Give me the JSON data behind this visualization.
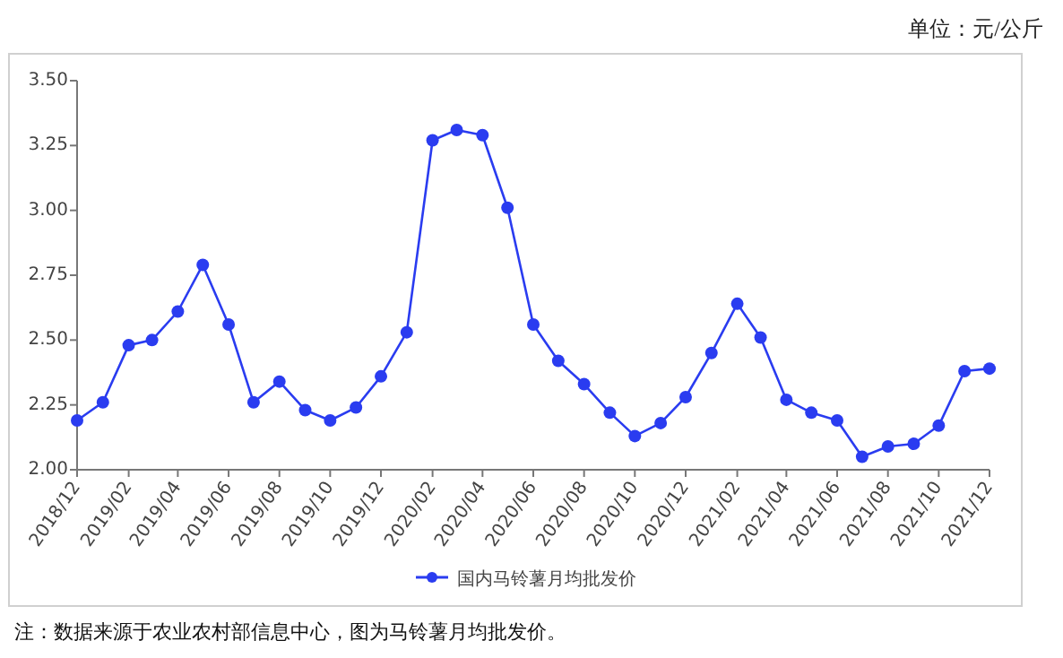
{
  "chart_data": {
    "type": "line",
    "subtitle": "单位：元/公斤",
    "annotations": [
      "注：数据来源于农业农村部信息中心，图为马铃薯月均批发价。"
    ],
    "x": [
      "2018-12",
      "2019-01",
      "2019-02",
      "2019-03",
      "2019-04",
      "2019-05",
      "2019-06",
      "2019-07",
      "2019-08",
      "2019-09",
      "2019-10",
      "2019-11",
      "2019-12",
      "2020-01",
      "2020-02",
      "2020-03",
      "2020-04",
      "2020-05",
      "2020-06",
      "2020-07",
      "2020-08",
      "2020-09",
      "2020-10",
      "2020-11",
      "2020-12",
      "2021-01",
      "2021-02",
      "2021-03",
      "2021-04",
      "2021-05",
      "2021-06",
      "2021-07",
      "2021-08",
      "2021-09",
      "2021-10",
      "2021-11",
      "2021-12"
    ],
    "series": [
      {
        "name": "国内马铃薯月均批发价",
        "color": "#2a3cf0",
        "values": [
          2.19,
          2.26,
          2.48,
          2.5,
          2.61,
          2.79,
          2.56,
          2.26,
          2.34,
          2.23,
          2.19,
          2.24,
          2.36,
          2.53,
          3.27,
          3.31,
          3.29,
          3.01,
          2.56,
          2.42,
          2.33,
          2.22,
          2.13,
          2.18,
          2.28,
          2.45,
          2.64,
          2.51,
          2.27,
          2.22,
          2.19,
          2.05,
          2.09,
          2.1,
          2.17,
          2.38,
          2.39
        ]
      }
    ],
    "xlim": [
      "2018-12",
      "2021-12"
    ],
    "xticks": [
      {
        "value": "2018-12",
        "label": "2018/12"
      },
      {
        "value": "2019-02",
        "label": "2019/02"
      },
      {
        "value": "2019-04",
        "label": "2019/04"
      },
      {
        "value": "2019-06",
        "label": "2019/06"
      },
      {
        "value": "2019-08",
        "label": "2019/08"
      },
      {
        "value": "2019-10",
        "label": "2019/10"
      },
      {
        "value": "2019-12",
        "label": "2019/12"
      },
      {
        "value": "2020-02",
        "label": "2020/02"
      },
      {
        "value": "2020-04",
        "label": "2020/04"
      },
      {
        "value": "2020-06",
        "label": "2020/06"
      },
      {
        "value": "2020-08",
        "label": "2020/08"
      },
      {
        "value": "2020-10",
        "label": "2020/10"
      },
      {
        "value": "2020-12",
        "label": "2020/12"
      },
      {
        "value": "2021-02",
        "label": "2021/02"
      },
      {
        "value": "2021-04",
        "label": "2021/04"
      },
      {
        "value": "2021-06",
        "label": "2021/06"
      },
      {
        "value": "2021-08",
        "label": "2021/08"
      },
      {
        "value": "2021-10",
        "label": "2021/10"
      },
      {
        "value": "2021-12",
        "label": "2021/12"
      }
    ],
    "ylim": [
      2.0,
      3.5
    ],
    "yticks": [
      {
        "value": 2.0,
        "label": "2.00"
      },
      {
        "value": 2.25,
        "label": "2.25"
      },
      {
        "value": 2.5,
        "label": "2.50"
      },
      {
        "value": 2.75,
        "label": "2.75"
      },
      {
        "value": 3.0,
        "label": "3.00"
      },
      {
        "value": 3.25,
        "label": "3.25"
      },
      {
        "value": 3.5,
        "label": "3.50"
      }
    ],
    "grid": false,
    "legend": "bottom",
    "marker": "circle",
    "line_style": "solid"
  }
}
